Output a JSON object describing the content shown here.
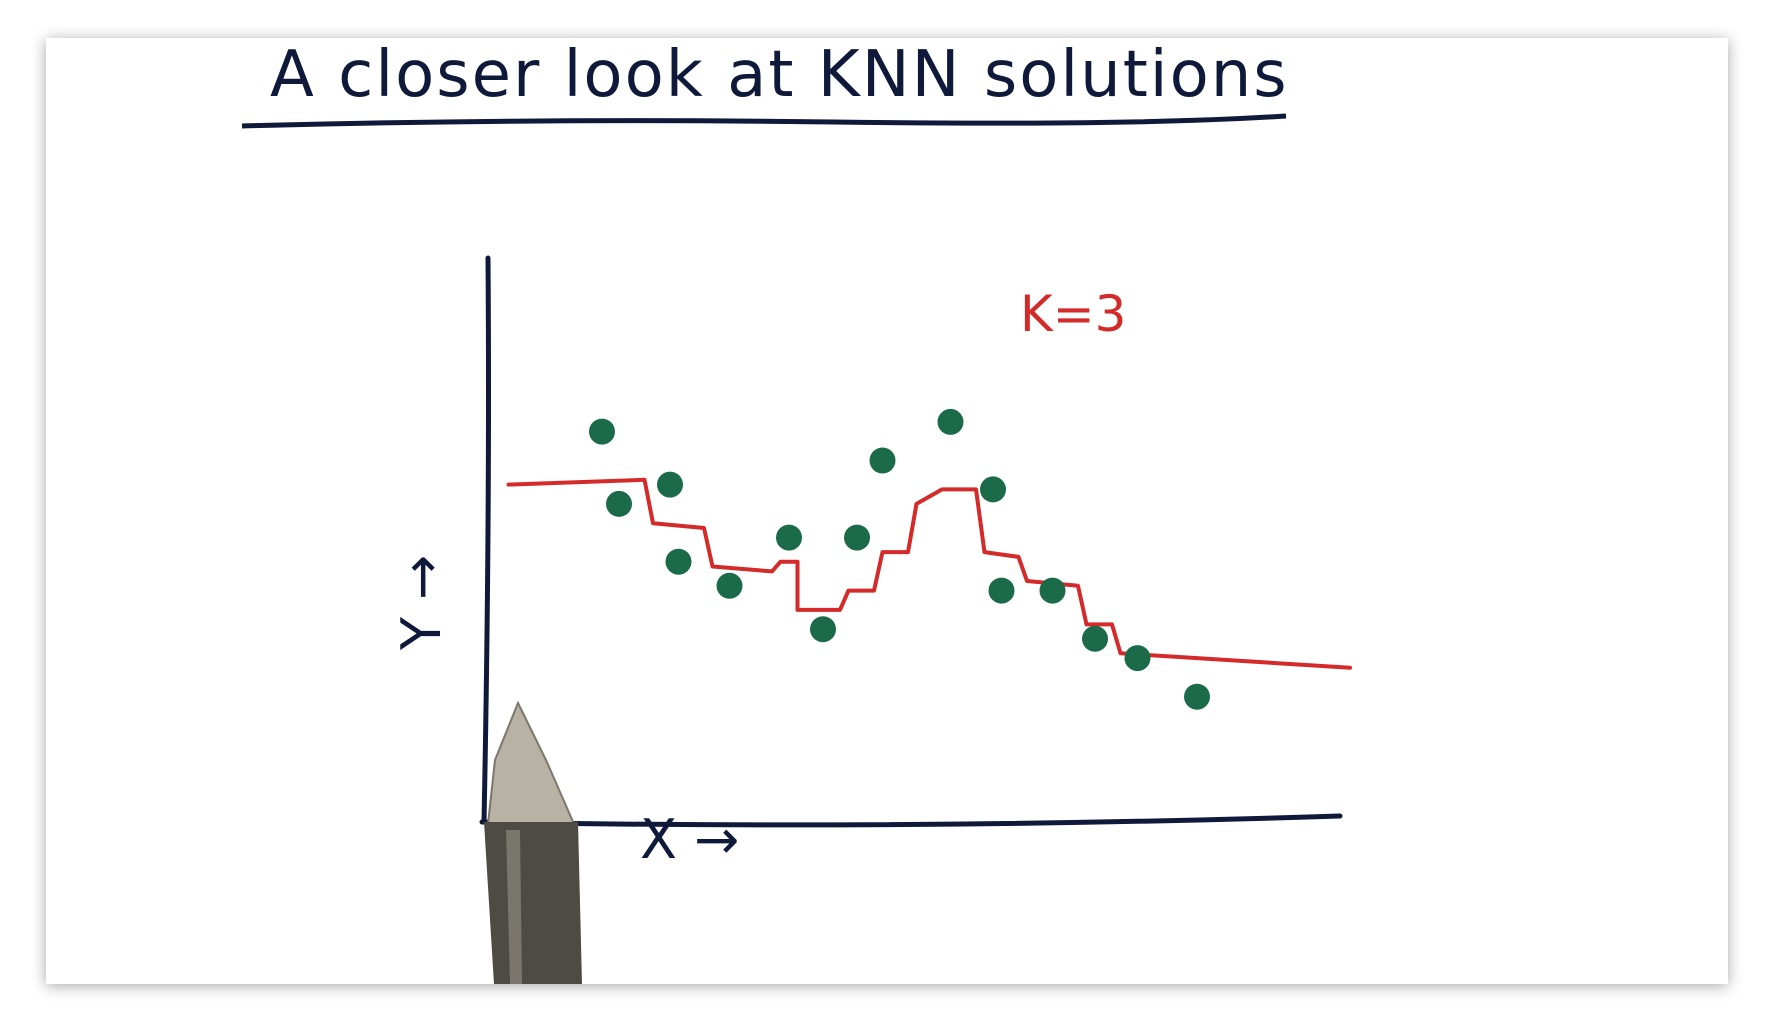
{
  "chart_data": {
    "type": "scatter",
    "title": "A closer look at KNN solutions",
    "xlabel": "X →",
    "ylabel": "Y →",
    "annotation": "K=3",
    "xlim": [
      0,
      100
    ],
    "ylim": [
      0,
      100
    ],
    "grid": false,
    "series": [
      {
        "kind": "points",
        "color": "#1b6a4a",
        "points": [
          [
            12,
            81
          ],
          [
            14,
            66
          ],
          [
            20,
            70
          ],
          [
            21,
            54
          ],
          [
            27,
            49
          ],
          [
            34,
            59
          ],
          [
            38,
            40
          ],
          [
            42,
            59
          ],
          [
            45,
            75
          ],
          [
            53,
            83
          ],
          [
            58,
            69
          ],
          [
            59,
            48
          ],
          [
            65,
            48
          ],
          [
            70,
            38
          ],
          [
            75,
            34
          ],
          [
            82,
            26
          ]
        ]
      },
      {
        "kind": "knn-step-line",
        "color": "#d42a2a",
        "points": [
          [
            1,
            70
          ],
          [
            17,
            71
          ],
          [
            18,
            62
          ],
          [
            24,
            61
          ],
          [
            25,
            53
          ],
          [
            32,
            52
          ],
          [
            33,
            54
          ],
          [
            35,
            54
          ],
          [
            35,
            44
          ],
          [
            40,
            44
          ],
          [
            41,
            48
          ],
          [
            44,
            48
          ],
          [
            45,
            56
          ],
          [
            48,
            56
          ],
          [
            49,
            66
          ],
          [
            52,
            69
          ],
          [
            56,
            69
          ],
          [
            57,
            56
          ],
          [
            61,
            55
          ],
          [
            62,
            50
          ],
          [
            68,
            49
          ],
          [
            69,
            41
          ],
          [
            72,
            41
          ],
          [
            73,
            35
          ],
          [
            82,
            34
          ],
          [
            100,
            32
          ]
        ]
      }
    ]
  },
  "colors": {
    "ink": "#0f1a3a",
    "points": "#1b6a4a",
    "knn_line": "#d42a2a"
  },
  "decoration": {
    "pen_icon": "pen-icon"
  }
}
